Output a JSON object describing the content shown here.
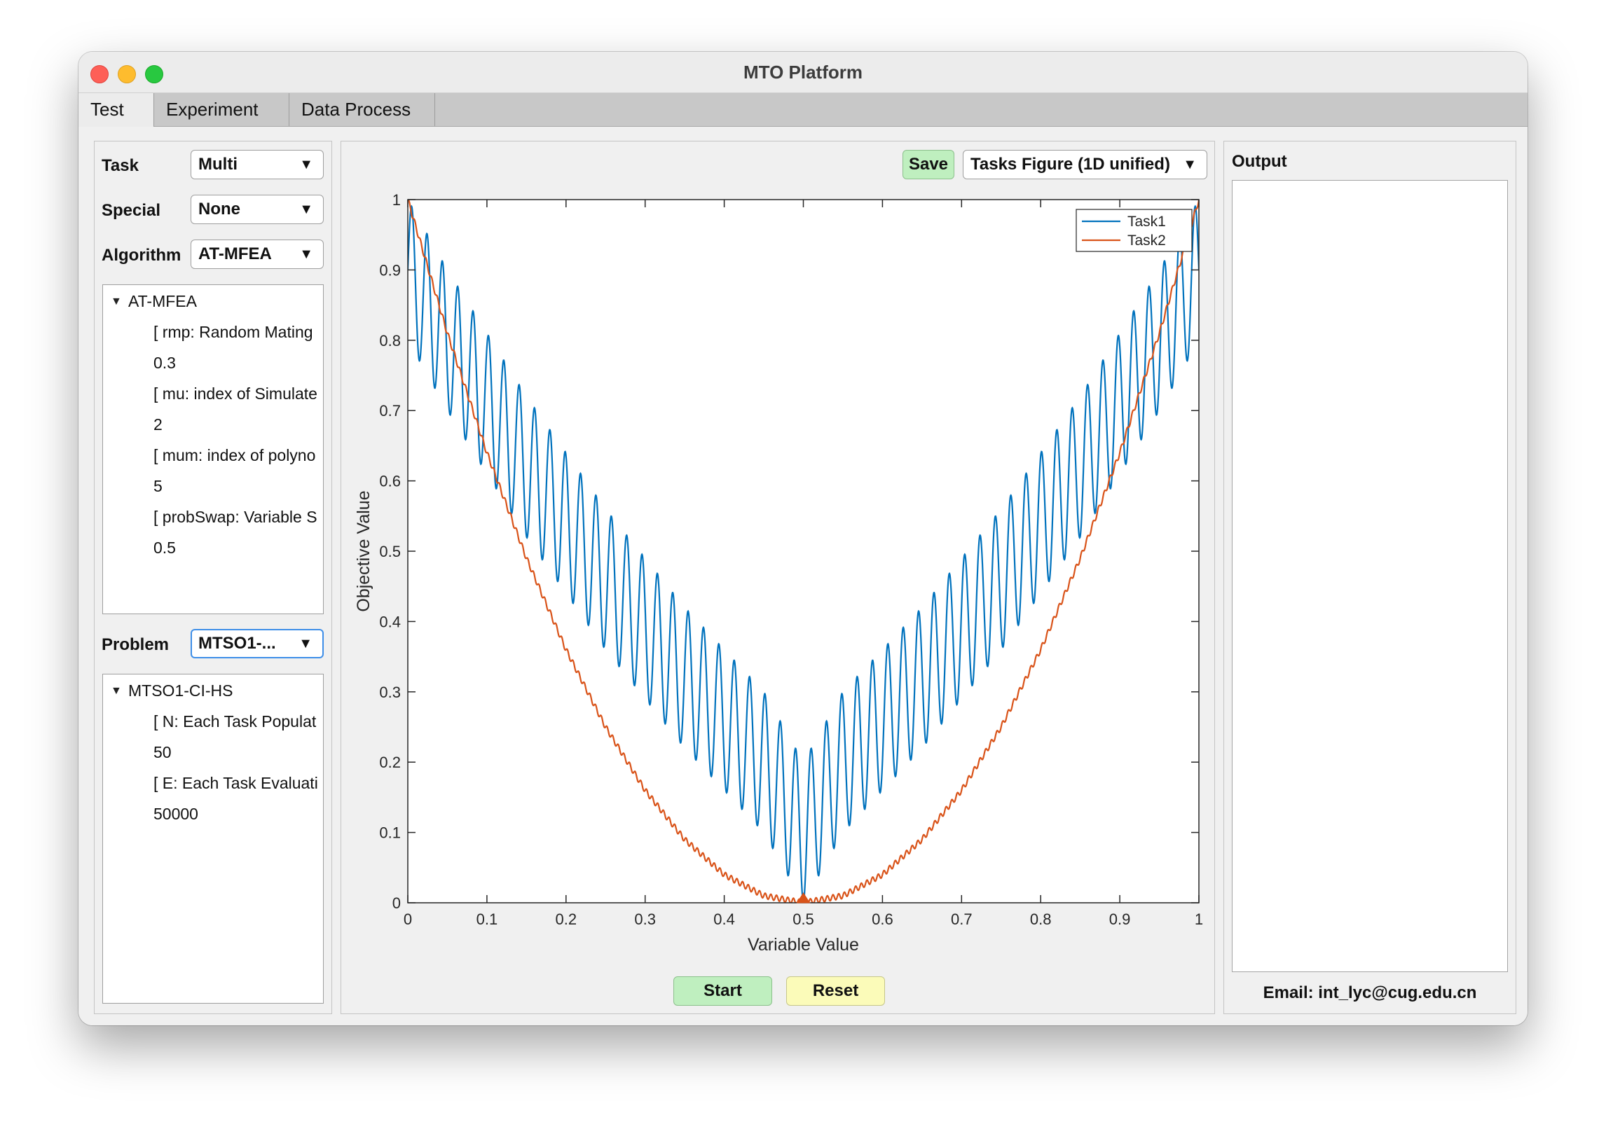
{
  "window": {
    "title": "MTO Platform"
  },
  "tabs": [
    {
      "label": "Test",
      "active": true
    },
    {
      "label": "Experiment",
      "active": false
    },
    {
      "label": "Data Process",
      "active": false
    }
  ],
  "left_panel": {
    "task": {
      "label": "Task",
      "value": "Multi"
    },
    "special": {
      "label": "Special",
      "value": "None"
    },
    "algorithm": {
      "label": "Algorithm",
      "value": "AT-MFEA"
    },
    "algorithm_tree": {
      "root": "AT-MFEA",
      "params": [
        {
          "name": "[ rmp: Random Mating",
          "value": "0.3"
        },
        {
          "name": "[ mu: index of Simulate",
          "value": "2"
        },
        {
          "name": "[ mum: index of polyno",
          "value": "5"
        },
        {
          "name": "[ probSwap: Variable S",
          "value": "0.5"
        }
      ]
    },
    "problem": {
      "label": "Problem",
      "value": "MTSO1-..."
    },
    "problem_tree": {
      "root": "MTSO1-CI-HS",
      "params": [
        {
          "name": "[ N: Each Task Populat",
          "value": "50"
        },
        {
          "name": "[ E: Each Task Evaluati",
          "value": "50000"
        }
      ]
    }
  },
  "center_panel": {
    "save_label": "Save",
    "figure_select": "Tasks Figure (1D unified)",
    "start_label": "Start",
    "reset_label": "Reset"
  },
  "right_panel": {
    "output_label": "Output",
    "email": "Email: int_lyc@cug.edu.cn"
  },
  "colors": {
    "task1": "#0072bd",
    "task2": "#d95319",
    "button_green": "#bfefbf",
    "button_yellow": "#fbfbb9",
    "focus_blue": "#3d8ee8"
  },
  "chart_data": {
    "type": "line",
    "xlabel": "Variable Value",
    "ylabel": "Objective Value",
    "xlim": [
      0,
      1
    ],
    "ylim": [
      0,
      1
    ],
    "xticks": [
      "0",
      "0.1",
      "0.2",
      "0.3",
      "0.4",
      "0.5",
      "0.6",
      "0.7",
      "0.8",
      "0.9",
      "1"
    ],
    "yticks": [
      "0",
      "0.1",
      "0.2",
      "0.3",
      "0.4",
      "0.5",
      "0.6",
      "0.7",
      "0.8",
      "0.9",
      "1"
    ],
    "legend_position": "top-right",
    "series": [
      {
        "name": "Task1",
        "color": "#0072bd",
        "description": "oscillating curve",
        "x": [
          0,
          0.05,
          0.1,
          0.15,
          0.2,
          0.25,
          0.3,
          0.35,
          0.4,
          0.45,
          0.5,
          0.55,
          0.6,
          0.65,
          0.7,
          0.75,
          0.8,
          0.85,
          0.9,
          0.95,
          1
        ],
        "upper": [
          1.0,
          0.9,
          0.81,
          0.72,
          0.64,
          0.56,
          0.49,
          0.42,
          0.36,
          0.3,
          0.2,
          0.3,
          0.36,
          0.42,
          0.49,
          0.56,
          0.64,
          0.72,
          0.81,
          0.9,
          1.0
        ],
        "lower": [
          0.8,
          0.7,
          0.61,
          0.52,
          0.44,
          0.36,
          0.29,
          0.22,
          0.16,
          0.1,
          0.0,
          0.1,
          0.16,
          0.22,
          0.29,
          0.36,
          0.44,
          0.52,
          0.61,
          0.7,
          0.8
        ]
      },
      {
        "name": "Task2",
        "color": "#d95319",
        "x": [
          0,
          0.05,
          0.1,
          0.15,
          0.2,
          0.25,
          0.3,
          0.35,
          0.4,
          0.45,
          0.5,
          0.55,
          0.6,
          0.65,
          0.7,
          0.75,
          0.8,
          0.85,
          0.9,
          0.95,
          1
        ],
        "values": [
          1.0,
          0.81,
          0.64,
          0.49,
          0.36,
          0.25,
          0.16,
          0.09,
          0.04,
          0.01,
          0.0,
          0.01,
          0.04,
          0.09,
          0.16,
          0.25,
          0.36,
          0.49,
          0.64,
          0.81,
          1.0
        ]
      }
    ],
    "markers": [
      {
        "x": 0.5,
        "y": 0.0,
        "shape": "triangle",
        "color": "#d95319"
      }
    ]
  }
}
